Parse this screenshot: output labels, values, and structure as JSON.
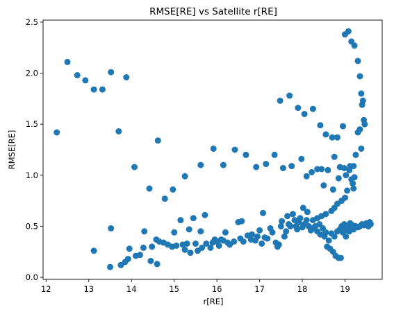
{
  "chart_data": {
    "type": "scatter",
    "title": "RMSE[RE] vs Satellite r[RE]",
    "xlabel": "r[RE]",
    "ylabel": "RMSE[RE]",
    "xlim": [
      11.93,
      19.87
    ],
    "ylim": [
      -0.02,
      2.52
    ],
    "xticks": [
      12,
      13,
      14,
      15,
      16,
      17,
      18,
      19
    ],
    "xtick_labels": [
      "12",
      "13",
      "14",
      "15",
      "16",
      "17",
      "18",
      "19"
    ],
    "yticks": [
      0.0,
      0.5,
      1.0,
      1.5,
      2.0,
      2.5
    ],
    "ytick_labels": [
      "0.0",
      "0.5",
      "1.0",
      "1.5",
      "2.0",
      "2.5"
    ],
    "grid": false,
    "color": "#1f77b4",
    "points": [
      [
        12.25,
        1.42
      ],
      [
        12.5,
        2.11
      ],
      [
        12.73,
        1.98
      ],
      [
        12.92,
        1.93
      ],
      [
        13.12,
        1.84
      ],
      [
        13.32,
        1.84
      ],
      [
        13.52,
        2.01
      ],
      [
        13.88,
        1.96
      ],
      [
        13.7,
        1.43
      ],
      [
        14.07,
        1.08
      ],
      [
        14.42,
        0.87
      ],
      [
        14.62,
        1.34
      ],
      [
        14.78,
        0.77
      ],
      [
        14.97,
        0.86
      ],
      [
        15.25,
        0.99
      ],
      [
        15.62,
        1.1
      ],
      [
        15.92,
        1.26
      ],
      [
        16.15,
        1.1
      ],
      [
        16.42,
        1.25
      ],
      [
        16.68,
        1.2
      ],
      [
        16.92,
        1.08
      ],
      [
        17.15,
        1.11
      ],
      [
        17.35,
        1.2
      ],
      [
        17.55,
        1.07
      ],
      [
        17.75,
        1.09
      ],
      [
        17.98,
        1.16
      ],
      [
        18.1,
        0.99
      ],
      [
        18.22,
        1.03
      ],
      [
        18.35,
        1.06
      ],
      [
        18.45,
        1.06
      ],
      [
        17.48,
        1.73
      ],
      [
        17.7,
        1.78
      ],
      [
        17.9,
        1.66
      ],
      [
        18.05,
        1.6
      ],
      [
        18.25,
        1.65
      ],
      [
        18.42,
        1.49
      ],
      [
        18.55,
        1.4
      ],
      [
        18.7,
        1.37
      ],
      [
        18.82,
        1.37
      ],
      [
        18.95,
        1.48
      ],
      [
        18.75,
        1.18
      ],
      [
        18.88,
        1.08
      ],
      [
        19.02,
        1.0
      ],
      [
        19.12,
        1.09
      ],
      [
        19.2,
        1.09
      ],
      [
        19.25,
        1.2
      ],
      [
        19.3,
        1.42
      ],
      [
        19.35,
        1.45
      ],
      [
        19.38,
        1.8
      ],
      [
        19.4,
        1.69
      ],
      [
        19.42,
        1.73
      ],
      [
        19.44,
        1.54
      ],
      [
        19.46,
        1.5
      ],
      [
        19.35,
        1.97
      ],
      [
        19.3,
        2.12
      ],
      [
        19.22,
        2.27
      ],
      [
        19.15,
        2.31
      ],
      [
        19.08,
        2.41
      ],
      [
        19.0,
        2.38
      ],
      [
        19.38,
        1.26
      ],
      [
        19.22,
        0.98
      ],
      [
        19.18,
        0.92
      ],
      [
        19.2,
        0.87
      ],
      [
        19.15,
        0.96
      ],
      [
        19.1,
        1.05
      ],
      [
        19.05,
        0.85
      ],
      [
        18.98,
        1.07
      ],
      [
        18.85,
        0.97
      ],
      [
        18.72,
        0.86
      ],
      [
        18.6,
        1.05
      ],
      [
        18.5,
        0.9
      ],
      [
        19.0,
        0.78
      ],
      [
        18.92,
        0.75
      ],
      [
        18.82,
        0.72
      ],
      [
        18.75,
        0.68
      ],
      [
        18.68,
        0.65
      ],
      [
        18.55,
        0.62
      ],
      [
        18.45,
        0.6
      ],
      [
        18.35,
        0.58
      ],
      [
        18.25,
        0.56
      ],
      [
        13.12,
        0.26
      ],
      [
        13.52,
        0.48
      ],
      [
        13.5,
        0.1
      ],
      [
        13.75,
        0.12
      ],
      [
        13.85,
        0.15
      ],
      [
        13.92,
        0.18
      ],
      [
        13.95,
        0.28
      ],
      [
        14.1,
        0.21
      ],
      [
        14.2,
        0.22
      ],
      [
        14.28,
        0.29
      ],
      [
        14.3,
        0.45
      ],
      [
        14.45,
        0.16
      ],
      [
        14.48,
        0.3
      ],
      [
        14.58,
        0.37
      ],
      [
        14.6,
        0.13
      ],
      [
        14.65,
        0.35
      ],
      [
        14.75,
        0.34
      ],
      [
        14.85,
        0.32
      ],
      [
        14.95,
        0.3
      ],
      [
        15.0,
        0.44
      ],
      [
        15.05,
        0.31
      ],
      [
        15.15,
        0.56
      ],
      [
        15.2,
        0.32
      ],
      [
        15.25,
        0.27
      ],
      [
        15.3,
        0.33
      ],
      [
        15.35,
        0.47
      ],
      [
        15.38,
        0.24
      ],
      [
        15.45,
        0.58
      ],
      [
        15.5,
        0.33
      ],
      [
        15.55,
        0.26
      ],
      [
        15.62,
        0.45
      ],
      [
        15.65,
        0.29
      ],
      [
        15.72,
        0.61
      ],
      [
        15.75,
        0.33
      ],
      [
        15.85,
        0.29
      ],
      [
        15.9,
        0.34
      ],
      [
        15.95,
        0.37
      ],
      [
        16.0,
        0.35
      ],
      [
        16.05,
        0.31
      ],
      [
        16.1,
        0.37
      ],
      [
        16.15,
        0.36
      ],
      [
        16.2,
        0.44
      ],
      [
        16.25,
        0.34
      ],
      [
        16.3,
        0.32
      ],
      [
        16.4,
        0.35
      ],
      [
        16.5,
        0.54
      ],
      [
        16.55,
        0.38
      ],
      [
        16.58,
        0.55
      ],
      [
        16.62,
        0.35
      ],
      [
        16.72,
        0.41
      ],
      [
        16.8,
        0.37
      ],
      [
        16.82,
        0.42
      ],
      [
        16.9,
        0.36
      ],
      [
        16.95,
        0.4
      ],
      [
        17.0,
        0.46
      ],
      [
        17.05,
        0.33
      ],
      [
        17.08,
        0.63
      ],
      [
        17.12,
        0.39
      ],
      [
        17.18,
        0.38
      ],
      [
        17.25,
        0.48
      ],
      [
        17.3,
        0.44
      ],
      [
        17.38,
        0.34
      ],
      [
        17.42,
        0.3
      ],
      [
        17.45,
        0.32
      ],
      [
        17.5,
        0.5
      ],
      [
        17.52,
        0.55
      ],
      [
        17.58,
        0.4
      ],
      [
        17.62,
        0.45
      ],
      [
        17.65,
        0.6
      ],
      [
        17.68,
        0.52
      ],
      [
        17.72,
        0.5
      ],
      [
        17.78,
        0.62
      ],
      [
        17.82,
        0.56
      ],
      [
        17.85,
        0.5
      ],
      [
        17.88,
        0.47
      ],
      [
        17.92,
        0.54
      ],
      [
        17.95,
        0.58
      ],
      [
        18.0,
        0.49
      ],
      [
        18.02,
        0.68
      ],
      [
        18.05,
        0.52
      ],
      [
        18.1,
        0.56
      ],
      [
        18.12,
        0.64
      ],
      [
        18.15,
        0.5
      ],
      [
        18.2,
        0.46
      ],
      [
        18.25,
        0.48
      ],
      [
        18.3,
        0.5
      ],
      [
        18.35,
        0.45
      ],
      [
        18.4,
        0.52
      ],
      [
        18.42,
        0.42
      ],
      [
        18.48,
        0.48
      ],
      [
        18.52,
        0.4
      ],
      [
        18.55,
        0.44
      ],
      [
        18.58,
        0.3
      ],
      [
        18.62,
        0.36
      ],
      [
        18.65,
        0.28
      ],
      [
        18.68,
        0.43
      ],
      [
        18.72,
        0.25
      ],
      [
        18.75,
        0.4
      ],
      [
        18.78,
        0.21
      ],
      [
        18.82,
        0.45
      ],
      [
        18.85,
        0.19
      ],
      [
        18.88,
        0.47
      ],
      [
        18.9,
        0.19
      ],
      [
        18.92,
        0.5
      ],
      [
        18.95,
        0.44
      ],
      [
        18.98,
        0.52
      ],
      [
        19.0,
        0.46
      ],
      [
        19.02,
        0.4
      ],
      [
        19.05,
        0.48
      ],
      [
        19.08,
        0.5
      ],
      [
        19.1,
        0.45
      ],
      [
        19.12,
        0.53
      ],
      [
        19.15,
        0.48
      ],
      [
        19.18,
        0.51
      ],
      [
        19.2,
        0.47
      ],
      [
        19.25,
        0.5
      ],
      [
        19.3,
        0.49
      ],
      [
        19.35,
        0.5
      ],
      [
        19.4,
        0.52
      ],
      [
        19.45,
        0.51
      ],
      [
        19.5,
        0.53
      ],
      [
        19.55,
        0.5
      ],
      [
        19.58,
        0.54
      ],
      [
        19.6,
        0.52
      ]
    ]
  }
}
